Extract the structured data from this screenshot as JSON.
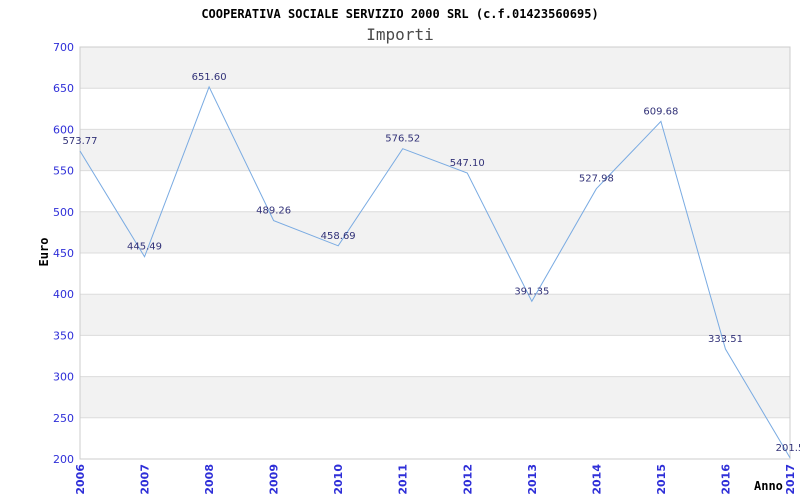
{
  "header": {
    "title": "COOPERATIVA SOCIALE SERVIZIO 2000 SRL (c.f.01423560695)",
    "subtitle": "Importi"
  },
  "chart_data": {
    "type": "line",
    "title": "Importi",
    "categories": [
      "2006",
      "2007",
      "2008",
      "2009",
      "2010",
      "2011",
      "2012",
      "2013",
      "2014",
      "2015",
      "2016",
      "2017"
    ],
    "series": [
      {
        "name": "Importi",
        "values": [
          573.77,
          445.49,
          651.6,
          489.26,
          458.69,
          576.52,
          547.1,
          391.35,
          527.98,
          609.68,
          333.51,
          201.5
        ],
        "point_labels": [
          "573.77",
          "445.49",
          "651.60",
          "489.26",
          "458.69",
          "576.52",
          "547.10",
          "391.35",
          "527.98",
          "609.68",
          "333.51",
          "201.5"
        ]
      }
    ],
    "xlabel": "Anno",
    "ylabel": "Euro",
    "ylim": [
      200,
      700
    ],
    "ytick_step": 50,
    "grid": "horizontal-bands",
    "legend_position": "none",
    "colors": {
      "line": "#7aabe2",
      "band": "#f2f2f2",
      "gridline": "#dcdcdc",
      "plot_border": "#cccccc",
      "tick_label": "#2e2ed8",
      "point_label": "#323278",
      "title": "#000000",
      "subtitle": "#4a4a4a",
      "background": "#ffffff"
    }
  }
}
